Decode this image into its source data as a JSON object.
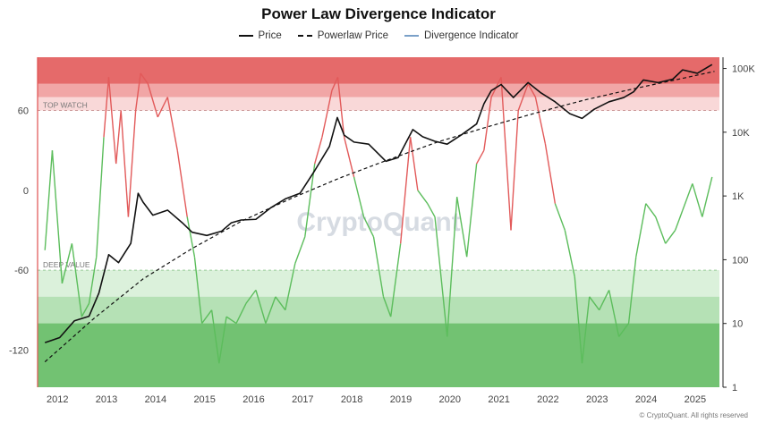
{
  "title": "Power Law Divergence Indicator",
  "legend": {
    "price": "Price",
    "powerlaw": "Powerlaw Price",
    "divergence": "Divergence Indicator"
  },
  "zones": {
    "top_label": "TOP WATCH",
    "bottom_label": "DEEP VALUE"
  },
  "watermark": "CryptoQuant",
  "copyright": "© CryptoQuant. All rights reserved",
  "colors": {
    "price": "#111111",
    "powerlaw": "#111111",
    "divergence_high": "#e25a5a",
    "divergence_low": "#5cbd5c",
    "red_zone": "#e05050",
    "green_zone": "#4fb34f"
  },
  "chart_data": {
    "type": "line",
    "title": "Power Law Divergence Indicator",
    "x_ticks": [
      "2012",
      "2013",
      "2014",
      "2015",
      "2016",
      "2017",
      "2018",
      "2019",
      "2020",
      "2021",
      "2022",
      "2023",
      "2024",
      "2025"
    ],
    "left_axis": {
      "ticks": [
        "60",
        "0",
        "-60",
        "-120"
      ],
      "tick_values": [
        60,
        0,
        -60,
        -120
      ],
      "ylim": [
        -148,
        100
      ]
    },
    "right_axis": {
      "scale": "log",
      "ticks": [
        "100K",
        "10K",
        "1K",
        "100",
        "10",
        "1"
      ],
      "tick_values": [
        100000,
        10000,
        1000,
        100,
        10,
        1
      ],
      "ylim": [
        1,
        150000
      ]
    },
    "bands": [
      {
        "from": 80,
        "to": 100,
        "color": "#e05050",
        "opacity": 0.85
      },
      {
        "from": 70,
        "to": 80,
        "color": "#e86a6a",
        "opacity": 0.6
      },
      {
        "from": 60,
        "to": 70,
        "color": "#f2a8a8",
        "opacity": 0.45
      },
      {
        "from": -80,
        "to": -60,
        "color": "#5cbd5c",
        "opacity": 0.22
      },
      {
        "from": -100,
        "to": -80,
        "color": "#5cbd5c",
        "opacity": 0.45
      },
      {
        "from": -148,
        "to": -100,
        "color": "#4fb34f",
        "opacity": 0.8
      }
    ],
    "series": [
      {
        "name": "Price",
        "axis": "right",
        "x": [
          2012.0,
          2012.3,
          2012.6,
          2012.9,
          2013.1,
          2013.3,
          2013.5,
          2013.75,
          2013.9,
          2014.0,
          2014.2,
          2014.5,
          2014.8,
          2015.0,
          2015.3,
          2015.6,
          2015.8,
          2016.0,
          2016.3,
          2016.6,
          2016.9,
          2017.2,
          2017.5,
          2017.8,
          2017.96,
          2018.1,
          2018.3,
          2018.6,
          2018.95,
          2019.2,
          2019.5,
          2019.7,
          2019.95,
          2020.2,
          2020.5,
          2020.8,
          2020.95,
          2021.1,
          2021.3,
          2021.55,
          2021.85,
          2022.1,
          2022.4,
          2022.7,
          2022.95,
          2023.2,
          2023.5,
          2023.8,
          2024.0,
          2024.2,
          2024.5,
          2024.8,
          2025.0,
          2025.3,
          2025.6
        ],
        "y": [
          5,
          6,
          11,
          13,
          30,
          120,
          90,
          180,
          1100,
          800,
          500,
          600,
          380,
          270,
          240,
          280,
          380,
          420,
          430,
          650,
          900,
          1100,
          2500,
          6000,
          17000,
          9000,
          7000,
          6500,
          3500,
          4000,
          11000,
          8500,
          7200,
          6500,
          9200,
          13500,
          28000,
          45000,
          56000,
          35000,
          60000,
          42000,
          30000,
          19500,
          16500,
          23000,
          30000,
          35000,
          43000,
          66000,
          60000,
          68000,
          95000,
          84000,
          115000
        ]
      },
      {
        "name": "Powerlaw Price",
        "axis": "right",
        "x": [
          2012.0,
          2013.0,
          2014.0,
          2015.0,
          2016.0,
          2017.0,
          2018.0,
          2019.0,
          2020.0,
          2021.0,
          2022.0,
          2023.0,
          2024.0,
          2025.0,
          2025.65
        ],
        "y": [
          2.5,
          12,
          50,
          150,
          400,
          900,
          1900,
          3700,
          7000,
          12000,
          20000,
          32000,
          48000,
          70000,
          90000
        ]
      },
      {
        "name": "Divergence Indicator",
        "axis": "left",
        "x": [
          2012.0,
          2012.15,
          2012.35,
          2012.55,
          2012.75,
          2012.9,
          2013.05,
          2013.2,
          2013.3,
          2013.45,
          2013.55,
          2013.7,
          2013.85,
          2013.95,
          2014.1,
          2014.3,
          2014.5,
          2014.7,
          2014.9,
          2015.05,
          2015.2,
          2015.4,
          2015.55,
          2015.7,
          2015.9,
          2016.1,
          2016.3,
          2016.5,
          2016.7,
          2016.9,
          2017.1,
          2017.3,
          2017.5,
          2017.65,
          2017.85,
          2017.97,
          2018.1,
          2018.3,
          2018.5,
          2018.7,
          2018.9,
          2019.05,
          2019.25,
          2019.45,
          2019.6,
          2019.8,
          2019.95,
          2020.2,
          2020.4,
          2020.6,
          2020.8,
          2020.95,
          2021.1,
          2021.3,
          2021.5,
          2021.65,
          2021.85,
          2022.0,
          2022.2,
          2022.4,
          2022.6,
          2022.8,
          2022.95,
          2023.1,
          2023.3,
          2023.5,
          2023.7,
          2023.9,
          2024.05,
          2024.25,
          2024.45,
          2024.65,
          2024.85,
          2025.0,
          2025.2,
          2025.4,
          2025.6
        ],
        "y": [
          -45,
          30,
          -70,
          -40,
          -95,
          -85,
          -50,
          40,
          85,
          20,
          60,
          -20,
          60,
          88,
          80,
          55,
          70,
          30,
          -20,
          -50,
          -100,
          -90,
          -130,
          -95,
          -100,
          -85,
          -75,
          -100,
          -80,
          -90,
          -55,
          -35,
          20,
          40,
          75,
          85,
          40,
          10,
          -20,
          -35,
          -80,
          -95,
          -40,
          40,
          0,
          -10,
          -20,
          -110,
          -5,
          -50,
          20,
          30,
          70,
          85,
          -30,
          60,
          80,
          70,
          35,
          -10,
          -30,
          -65,
          -130,
          -80,
          -90,
          -75,
          -110,
          -100,
          -50,
          -10,
          -20,
          -40,
          -30,
          -15,
          5,
          -20,
          10
        ]
      }
    ]
  }
}
